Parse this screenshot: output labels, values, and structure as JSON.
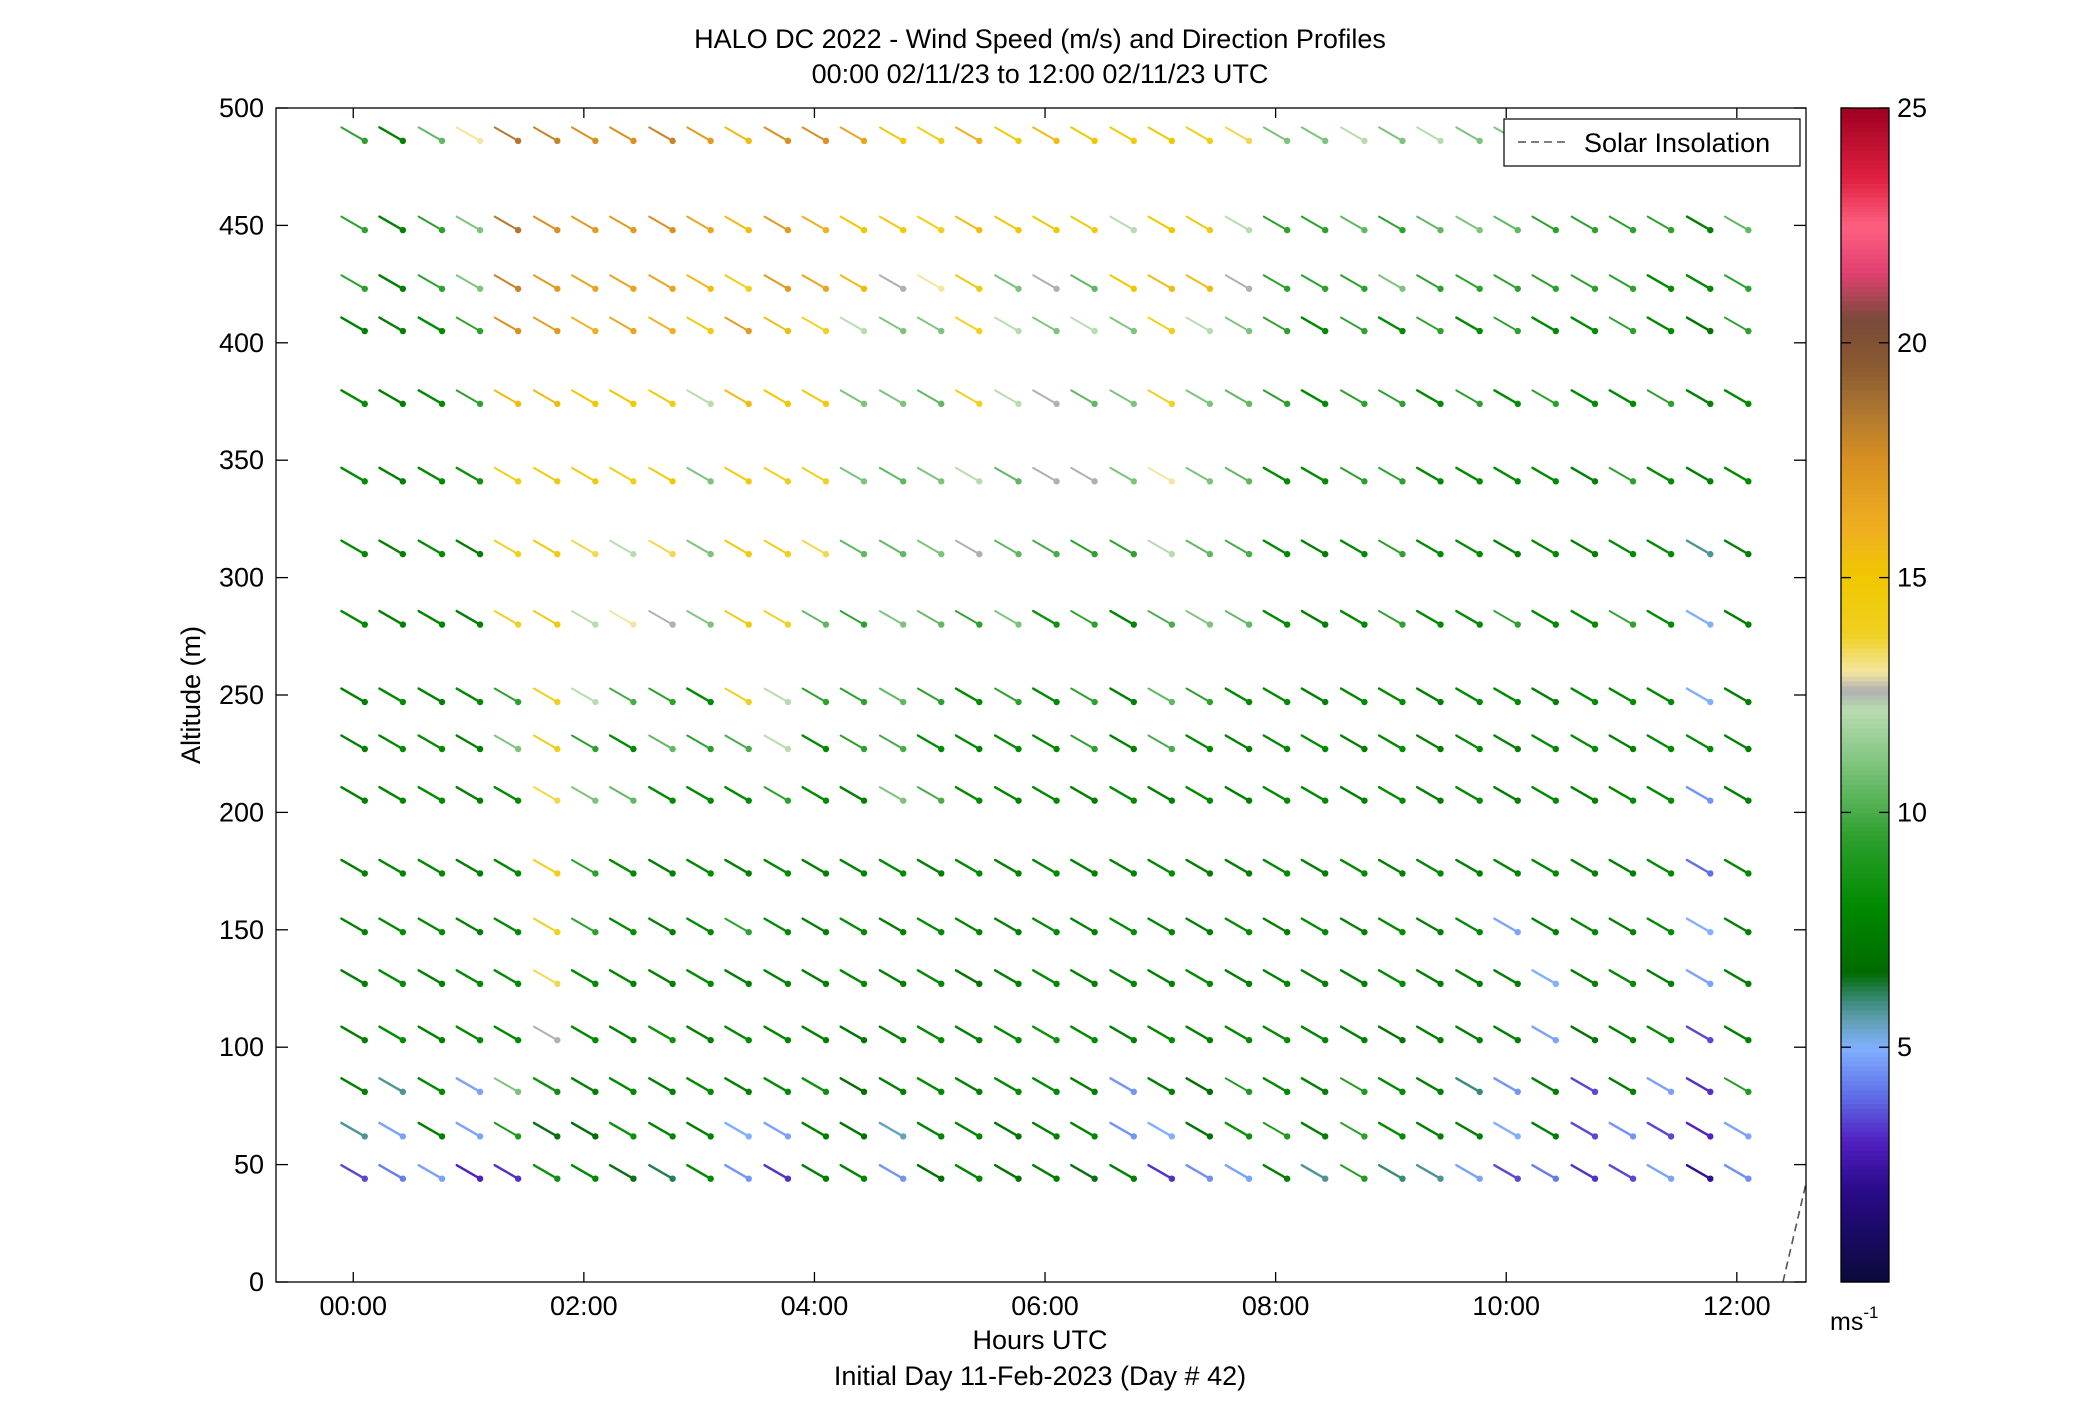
{
  "chart_data": {
    "type": "wind-barb-profile",
    "title": "HALO DC 2022 - Wind Speed (m/s) and Direction Profiles",
    "subtitle": "00:00 02/11/23 to 12:00 02/11/23  UTC",
    "xlabel": "Hours UTC",
    "xlabel2": "Initial Day 11-Feb-2023 (Day # 42)",
    "ylabel": "Altitude (m)",
    "xlim_hours": [
      -0.67,
      12.6
    ],
    "ylim": [
      0,
      500
    ],
    "x_ticks": [
      {
        "value": 0,
        "label": "00:00"
      },
      {
        "value": 2,
        "label": "02:00"
      },
      {
        "value": 4,
        "label": "04:00"
      },
      {
        "value": 6,
        "label": "06:00"
      },
      {
        "value": 8,
        "label": "08:00"
      },
      {
        "value": 10,
        "label": "10:00"
      },
      {
        "value": 12,
        "label": "12:00"
      }
    ],
    "y_ticks": [
      {
        "value": 0,
        "label": "0"
      },
      {
        "value": 50,
        "label": "50"
      },
      {
        "value": 100,
        "label": "100"
      },
      {
        "value": 150,
        "label": "150"
      },
      {
        "value": 200,
        "label": "200"
      },
      {
        "value": 250,
        "label": "250"
      },
      {
        "value": 300,
        "label": "300"
      },
      {
        "value": 350,
        "label": "350"
      },
      {
        "value": 400,
        "label": "400"
      },
      {
        "value": 450,
        "label": "450"
      },
      {
        "value": 500,
        "label": "500"
      }
    ],
    "legend": {
      "label": "Solar Insolation",
      "placement": "top-right",
      "style": "dashed"
    },
    "solar_insolation": [
      [
        12.4,
        0
      ],
      [
        12.6,
        42
      ]
    ],
    "colorbar": {
      "range": [
        0,
        25
      ],
      "unit": "ms",
      "unit_exponent": "-1",
      "ticks": [
        {
          "value": 5,
          "label": "5"
        },
        {
          "value": 10,
          "label": "10"
        },
        {
          "value": 15,
          "label": "15"
        },
        {
          "value": 20,
          "label": "20"
        },
        {
          "value": 25,
          "label": "25"
        }
      ],
      "stops": [
        [
          0,
          "#0a0a3a"
        ],
        [
          2,
          "#2a0a8a"
        ],
        [
          3,
          "#5020c0"
        ],
        [
          4,
          "#6070e8"
        ],
        [
          5,
          "#80b0ff"
        ],
        [
          5.6,
          "#5fa0b0"
        ],
        [
          6,
          "#3a8a7a"
        ],
        [
          6.6,
          "#006a00"
        ],
        [
          8,
          "#008a00"
        ],
        [
          9.5,
          "#2ea02e"
        ],
        [
          11,
          "#7cc47c"
        ],
        [
          12.2,
          "#b8dcb0"
        ],
        [
          12.6,
          "#b0b0b0"
        ],
        [
          13,
          "#f4e6a0"
        ],
        [
          13.8,
          "#f0d020"
        ],
        [
          15,
          "#f0c800"
        ],
        [
          16,
          "#f0b020"
        ],
        [
          17.5,
          "#d89020"
        ],
        [
          18.5,
          "#b07830"
        ],
        [
          19.5,
          "#8a5a30"
        ],
        [
          20.5,
          "#7a4a3a"
        ],
        [
          21.5,
          "#e04070"
        ],
        [
          22.5,
          "#ff6080"
        ],
        [
          23.5,
          "#e02040"
        ],
        [
          25,
          "#a00020"
        ]
      ]
    },
    "altitudes": [
      44,
      62,
      81,
      103,
      127,
      149,
      174,
      205,
      227,
      247,
      280,
      310,
      341,
      374,
      405,
      423,
      448,
      486
    ],
    "times_hours": [
      0.1,
      0.43,
      0.77,
      1.1,
      1.43,
      1.77,
      2.1,
      2.43,
      2.77,
      3.1,
      3.43,
      3.77,
      4.1,
      4.43,
      4.77,
      5.1,
      5.43,
      5.77,
      6.1,
      6.43,
      6.77,
      7.1,
      7.43,
      7.77,
      8.1,
      8.43,
      8.77,
      9.1,
      9.43,
      9.77,
      10.1,
      10.43,
      10.77,
      11.1,
      11.43,
      11.77,
      12.1
    ],
    "wind_direction_deg": 300,
    "wind_speed_ms": [
      [
        3.5,
        4.2,
        4.8,
        3.0,
        3.2,
        8.5,
        8.0,
        6.5,
        6.2,
        8.0,
        4.6,
        3.2,
        7.5,
        7.8,
        4.6,
        6.8,
        7.8,
        7.0,
        7.5,
        6.5,
        7.5,
        3.2,
        4.5,
        4.8,
        7.5,
        5.8,
        9.0,
        6.0,
        5.8,
        4.8,
        3.5,
        4.2,
        3.2,
        3.5,
        4.8,
        2.2,
        4.5
      ],
      [
        5.8,
        4.8,
        7.5,
        4.8,
        9.0,
        6.5,
        6.8,
        8.5,
        7.8,
        7.5,
        5.0,
        4.8,
        7.5,
        7.0,
        5.5,
        7.8,
        7.8,
        7.0,
        7.5,
        7.8,
        4.6,
        5.0,
        7.0,
        8.5,
        9.0,
        7.5,
        9.5,
        8.0,
        7.5,
        7.5,
        5.0,
        7.5,
        3.5,
        4.6,
        3.5,
        3.0,
        4.8
      ],
      [
        7.5,
        5.8,
        8.0,
        4.8,
        11.0,
        8.5,
        7.5,
        8.0,
        7.5,
        8.0,
        7.5,
        8.0,
        8.5,
        6.8,
        7.5,
        8.0,
        7.5,
        8.0,
        8.0,
        7.5,
        4.6,
        7.5,
        6.8,
        9.0,
        8.0,
        7.5,
        9.0,
        8.0,
        7.5,
        6.0,
        4.6,
        7.5,
        3.5,
        7.5,
        4.8,
        3.2,
        9.0
      ],
      [
        7.5,
        8.0,
        7.5,
        8.0,
        8.0,
        12.6,
        8.0,
        7.5,
        8.5,
        7.5,
        8.0,
        7.8,
        7.5,
        7.0,
        7.5,
        8.0,
        7.5,
        8.0,
        8.5,
        8.0,
        7.5,
        8.0,
        7.5,
        8.0,
        8.0,
        7.8,
        7.5,
        7.0,
        7.5,
        7.5,
        7.5,
        4.8,
        7.0,
        7.5,
        8.0,
        3.5,
        7.5
      ],
      [
        7.5,
        8.0,
        7.5,
        8.0,
        8.0,
        13.5,
        8.0,
        7.8,
        7.5,
        8.0,
        7.5,
        7.8,
        7.5,
        8.0,
        7.5,
        8.0,
        7.0,
        7.5,
        8.0,
        7.5,
        7.8,
        7.5,
        8.0,
        7.5,
        7.8,
        7.5,
        7.5,
        8.0,
        7.5,
        7.5,
        7.5,
        5.0,
        7.5,
        8.0,
        7.5,
        4.8,
        7.5
      ],
      [
        7.5,
        8.0,
        8.0,
        7.5,
        8.0,
        13.8,
        9.5,
        8.0,
        7.5,
        8.0,
        9.5,
        8.0,
        7.5,
        8.0,
        7.5,
        8.0,
        7.8,
        7.5,
        8.0,
        7.5,
        8.0,
        7.8,
        7.5,
        8.0,
        7.5,
        8.0,
        7.5,
        8.0,
        7.5,
        8.0,
        4.8,
        7.5,
        7.8,
        7.5,
        8.0,
        5.0,
        7.5
      ],
      [
        7.5,
        7.8,
        8.0,
        7.5,
        8.0,
        14.0,
        9.5,
        8.0,
        7.5,
        8.0,
        7.5,
        8.0,
        7.5,
        7.8,
        8.0,
        7.5,
        8.0,
        7.5,
        8.0,
        7.5,
        7.8,
        8.0,
        7.5,
        7.5,
        8.0,
        7.5,
        8.0,
        7.5,
        8.0,
        7.5,
        7.8,
        8.0,
        7.5,
        7.5,
        8.0,
        4.0,
        8.0
      ],
      [
        7.5,
        7.8,
        8.0,
        7.5,
        8.0,
        13.5,
        11.0,
        10.5,
        8.0,
        8.0,
        8.0,
        9.5,
        8.0,
        7.5,
        11.0,
        10.0,
        8.0,
        7.8,
        8.0,
        7.5,
        8.0,
        7.5,
        8.0,
        7.5,
        8.0,
        8.0,
        7.5,
        8.0,
        7.5,
        8.0,
        7.5,
        8.0,
        7.5,
        8.0,
        8.0,
        4.6,
        7.5
      ],
      [
        7.5,
        8.0,
        8.0,
        7.5,
        11.0,
        14.0,
        9.5,
        8.0,
        10.5,
        9.5,
        10.0,
        12.2,
        8.0,
        9.5,
        10.0,
        8.0,
        7.8,
        8.0,
        8.0,
        9.5,
        7.5,
        10.0,
        8.0,
        7.5,
        8.0,
        8.0,
        7.5,
        8.0,
        7.5,
        8.0,
        7.5,
        8.0,
        8.0,
        7.5,
        8.0,
        8.0,
        7.5
      ],
      [
        7.5,
        8.0,
        7.5,
        8.0,
        9.5,
        14.0,
        12.2,
        10.0,
        9.5,
        8.0,
        13.8,
        12.2,
        9.5,
        9.5,
        10.5,
        9.5,
        8.0,
        9.5,
        8.0,
        9.5,
        7.5,
        10.5,
        9.5,
        8.0,
        8.0,
        7.5,
        8.0,
        8.0,
        7.5,
        8.0,
        8.0,
        7.5,
        8.0,
        8.0,
        8.0,
        5.0,
        7.5
      ],
      [
        8.0,
        7.5,
        7.8,
        7.5,
        13.8,
        14.5,
        12.2,
        13.0,
        12.6,
        11.0,
        14.5,
        13.8,
        10.5,
        9.5,
        11.0,
        10.5,
        9.5,
        11.0,
        8.5,
        9.5,
        7.8,
        10.0,
        11.0,
        10.5,
        8.0,
        7.5,
        8.0,
        9.5,
        8.0,
        8.0,
        9.5,
        8.0,
        8.0,
        9.5,
        8.0,
        5.0,
        7.5
      ],
      [
        8.0,
        7.5,
        8.0,
        7.5,
        13.8,
        14.5,
        13.5,
        12.2,
        13.5,
        11.0,
        14.5,
        14.0,
        13.5,
        10.5,
        10.5,
        11.0,
        12.6,
        10.5,
        10.0,
        9.5,
        9.5,
        12.2,
        10.5,
        10.0,
        8.0,
        7.5,
        8.0,
        9.5,
        8.0,
        8.0,
        7.5,
        8.0,
        7.5,
        8.0,
        8.0,
        5.8,
        7.5
      ],
      [
        8.0,
        7.5,
        8.0,
        8.5,
        14.0,
        14.5,
        14.5,
        14.0,
        14.5,
        11.0,
        14.5,
        14.0,
        13.8,
        11.0,
        10.5,
        11.0,
        12.2,
        10.5,
        12.6,
        12.6,
        11.0,
        13.0,
        11.0,
        10.5,
        8.0,
        8.0,
        9.5,
        9.5,
        8.0,
        8.0,
        8.0,
        8.0,
        7.5,
        9.5,
        8.0,
        7.5,
        8.0
      ],
      [
        8.0,
        7.5,
        8.0,
        9.5,
        15.5,
        15.5,
        15.0,
        15.0,
        14.5,
        12.2,
        15.5,
        15.0,
        14.5,
        11.0,
        11.0,
        10.5,
        13.8,
        12.2,
        12.6,
        10.5,
        11.0,
        13.8,
        11.0,
        10.5,
        9.5,
        8.0,
        9.5,
        9.5,
        8.0,
        9.5,
        8.0,
        9.5,
        8.0,
        8.0,
        9.5,
        7.5,
        8.0
      ],
      [
        7.5,
        7.5,
        8.0,
        9.5,
        17.5,
        17.0,
        16.0,
        16.5,
        16.0,
        14.5,
        17.0,
        15.5,
        13.8,
        12.2,
        11.0,
        11.0,
        13.8,
        12.2,
        11.0,
        12.2,
        11.0,
        14.0,
        12.2,
        11.0,
        9.5,
        8.0,
        9.5,
        8.0,
        9.5,
        8.0,
        9.5,
        8.0,
        8.0,
        9.5,
        8.0,
        7.0,
        9.5
      ],
      [
        9.5,
        7.5,
        9.5,
        11.0,
        18.0,
        17.0,
        16.5,
        16.5,
        16.5,
        15.5,
        14.0,
        17.0,
        16.5,
        15.5,
        12.6,
        13.0,
        14.5,
        11.0,
        12.6,
        10.5,
        15.0,
        15.5,
        15.5,
        12.6,
        9.5,
        9.5,
        9.5,
        11.0,
        9.5,
        9.5,
        9.5,
        9.5,
        9.5,
        9.5,
        8.0,
        8.0,
        9.5
      ],
      [
        9.5,
        7.5,
        9.5,
        11.0,
        18.5,
        17.5,
        17.0,
        17.0,
        17.5,
        16.5,
        15.5,
        17.0,
        16.0,
        15.0,
        14.5,
        14.0,
        15.5,
        15.0,
        15.0,
        14.5,
        12.2,
        15.0,
        14.5,
        12.2,
        9.5,
        9.5,
        10.5,
        9.5,
        10.5,
        11.0,
        10.5,
        9.5,
        9.5,
        9.5,
        9.5,
        7.5,
        10.5
      ],
      [
        9.5,
        7.5,
        10.5,
        13.0,
        18.5,
        18.0,
        17.5,
        17.5,
        18.0,
        17.0,
        15.5,
        17.5,
        17.5,
        16.5,
        14.5,
        14.0,
        16.0,
        14.5,
        15.5,
        15.0,
        14.5,
        15.0,
        14.0,
        13.5,
        11.0,
        11.0,
        12.2,
        11.0,
        12.2,
        11.0,
        11.0,
        11.0,
        11.0,
        11.0,
        11.0,
        11.0,
        11.0
      ]
    ]
  }
}
